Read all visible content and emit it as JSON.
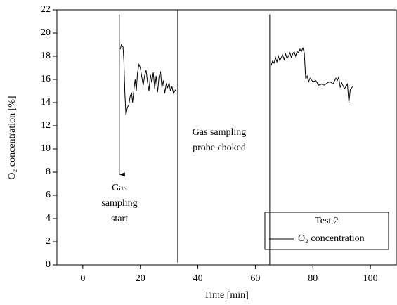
{
  "chart_data": {
    "type": "line",
    "xlabel": "Time [min]",
    "ylabel": "O₂ concentration [%]",
    "xlim": [
      -9,
      109
    ],
    "ylim": [
      0,
      22
    ],
    "xticks": [
      0,
      20,
      40,
      60,
      80,
      100
    ],
    "yticks": [
      0,
      2,
      4,
      6,
      8,
      10,
      12,
      14,
      16,
      18,
      20,
      22
    ],
    "x": [
      13.0,
      13.4,
      14.0,
      14.3,
      14.6,
      15.0,
      15.5,
      16.0,
      16.5,
      17.0,
      17.3,
      17.8,
      18.2,
      18.6,
      19.0,
      19.5,
      20.0,
      20.5,
      21.0,
      21.5,
      22.0,
      22.5,
      23.0,
      23.5,
      24.0,
      24.5,
      25.0,
      25.5,
      26.0,
      26.5,
      27.0,
      27.5,
      28.0,
      28.5,
      29.0,
      29.5,
      30.0,
      30.5,
      31.0,
      31.5,
      32.0,
      32.5,
      49,
      65.5,
      66,
      66.5,
      67,
      67.5,
      68,
      68.5,
      69,
      69.5,
      70,
      70.5,
      71,
      71.5,
      72,
      72.5,
      73,
      73.5,
      74,
      74.5,
      75,
      75.5,
      76,
      76.5,
      77,
      77.5,
      78,
      78.5,
      79,
      80,
      81,
      82,
      83,
      84,
      85,
      86,
      87,
      88,
      88.5,
      89,
      89.5,
      90,
      91,
      91.5,
      92,
      92.5,
      93,
      93.5,
      94
    ],
    "series": [
      {
        "name": "O₂ concentration",
        "color": "#000000",
        "values": [
          18.6,
          19.0,
          18.8,
          17.5,
          15.0,
          12.9,
          13.6,
          13.8,
          14.6,
          14.8,
          14.0,
          15.2,
          16.0,
          15.0,
          16.5,
          17.3,
          17.0,
          16.2,
          15.5,
          16.3,
          16.8,
          15.8,
          15.0,
          16.4,
          15.7,
          16.6,
          15.2,
          16.3,
          14.9,
          16.2,
          16.7,
          15.3,
          15.9,
          14.8,
          15.6,
          15.3,
          15.7,
          15.0,
          15.4,
          14.8,
          15.0,
          15.2,
          null,
          17.2,
          17.6,
          17.4,
          17.9,
          17.5,
          18.0,
          17.6,
          17.9,
          18.1,
          17.7,
          18.2,
          17.8,
          18.0,
          18.3,
          17.9,
          18.2,
          18.4,
          18.0,
          18.4,
          18.3,
          18.6,
          18.4,
          18.7,
          18.3,
          16.0,
          16.3,
          15.8,
          16.1,
          15.8,
          15.9,
          15.5,
          15.6,
          15.5,
          15.7,
          15.8,
          15.6,
          16.1,
          15.9,
          16.2,
          15.3,
          15.7,
          15.2,
          15.4,
          15.6,
          14.0,
          15.1,
          15.3,
          15.4
        ]
      }
    ],
    "markers": [
      {
        "x": 12.7,
        "y": [
          21.6,
          7.8
        ],
        "arrow": true
      },
      {
        "x": 33,
        "y": [
          22,
          0.2
        ],
        "arrow": false
      },
      {
        "x": 65,
        "y": [
          21.6,
          0
        ],
        "arrow": false
      }
    ],
    "annotations": [
      [
        "Gas",
        "sampling",
        "start"
      ],
      [
        "Gas sampling",
        "probe choked"
      ]
    ],
    "legend_title": "Test 2"
  }
}
